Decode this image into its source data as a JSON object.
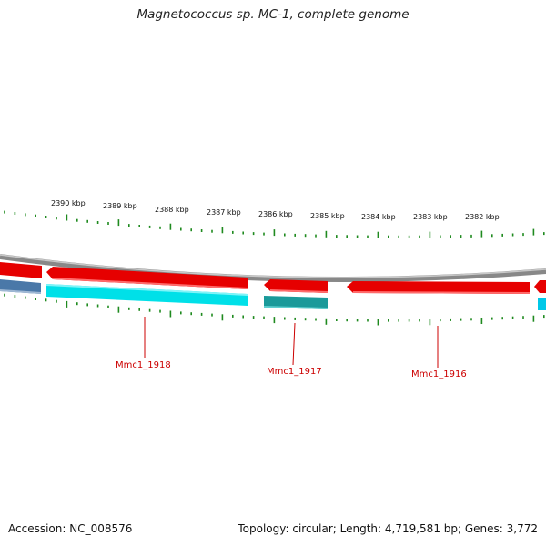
{
  "title": "Magnetococcus sp. MC-1, complete genome",
  "footer": {
    "accession": "Accession: NC_008576",
    "summary": "Topology: circular; Length: 4,719,581 bp; Genes: 3,772"
  },
  "scale": {
    "unit": "kbp",
    "labels": [
      "2390 kbp",
      "2389 kbp",
      "2388 kbp",
      "2387 kbp",
      "2386 kbp",
      "2385 kbp",
      "2384 kbp",
      "2383 kbp",
      "2382 kbp"
    ]
  },
  "genes": [
    {
      "label": "Mmc1_1918"
    },
    {
      "label": "Mmc1_1917"
    },
    {
      "label": "Mmc1_1916"
    }
  ],
  "colors": {
    "cds_forward": "#e60000",
    "cds_reverse": "#00e0e8",
    "reverse_dark": "#1a9a9a",
    "blue_feature": "#4a78a8",
    "backbone": "#8a8a8a",
    "ticks": "#1f8a1f",
    "label": "#cc0000"
  }
}
